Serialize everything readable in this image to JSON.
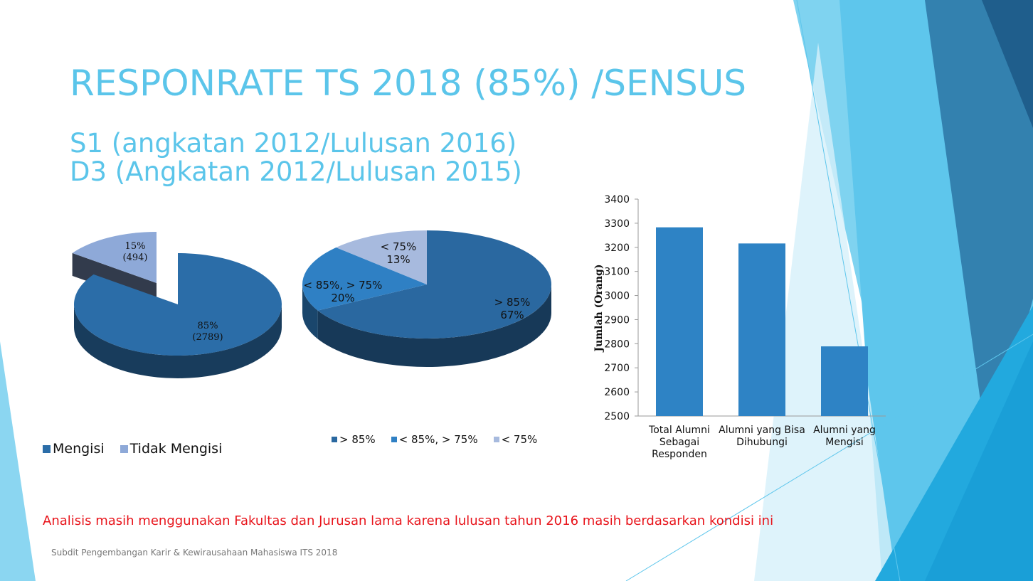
{
  "title": "RESPONRATE TS 2018 (85%) /SENSUS",
  "subtitle_lines": [
    "S1 (angkatan 2012/Lulusan 2016)",
    "D3 (Angkatan 2012/Lulusan 2015)"
  ],
  "note": "Analisis masih menggunakan Fakultas dan Jurusan lama karena lulusan tahun 2016 masih berdasarkan kondisi ini",
  "footer": "Subdit Pengembangan Karir & Kewirausahaan Mahasiswa ITS 2018",
  "chart_data": [
    {
      "type": "pie",
      "style": "3d-exploded",
      "categories": [
        "Mengisi",
        "Tidak Mengisi"
      ],
      "values": [
        2789,
        494
      ],
      "percent": [
        85,
        15
      ],
      "labels": [
        [
          "85%",
          "(2789)"
        ],
        [
          "15%",
          "(494)"
        ]
      ],
      "colors": [
        "#2b6da8",
        "#8ea9d8"
      ],
      "legend": [
        "Mengisi",
        "Tidak Mengisi"
      ],
      "legend_position": "bottom"
    },
    {
      "type": "pie",
      "style": "3d",
      "categories": [
        "> 85%",
        "< 85%, > 75%",
        "< 75%"
      ],
      "values": [
        67,
        20,
        13
      ],
      "labels": [
        [
          "> 85%",
          "67%"
        ],
        [
          "< 85%, > 75%",
          "20%"
        ],
        [
          "< 75%",
          "13%"
        ]
      ],
      "colors": [
        "#2a68a0",
        "#2f80c4",
        "#a7bade"
      ],
      "legend": [
        "> 85%",
        "< 85%, > 75%",
        "< 75%"
      ],
      "legend_position": "bottom"
    },
    {
      "type": "bar",
      "categories": [
        [
          "Total Alumni",
          "Sebagai",
          "Responden"
        ],
        [
          "Alumni yang Bisa",
          "Dihubungi"
        ],
        [
          "Alumni yang",
          "Mengisi"
        ]
      ],
      "values": [
        3283,
        3216,
        2789
      ],
      "ylabel": "Jumlah (Orang)",
      "ylim": [
        2500,
        3400
      ],
      "yticks": [
        "2500",
        "2600",
        "2700",
        "2800",
        "2900",
        "3000",
        "3100",
        "3200",
        "3300",
        "3400"
      ],
      "grid": false,
      "color": "#2e83c5"
    }
  ]
}
